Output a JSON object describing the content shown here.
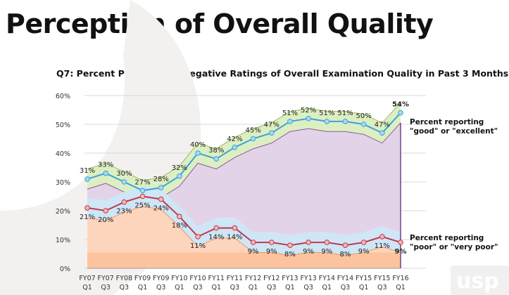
{
  "slide": {
    "title": "Perception of Overall Quality",
    "logo_text": "usp"
  },
  "chart_data": {
    "type": "line",
    "title": "Q7: Percent Positive and Negative Ratings of Overall Examination Quality in Past 3 Months",
    "categories": [
      [
        "FY07",
        "Q1"
      ],
      [
        "FY07",
        "Q3"
      ],
      [
        "FY08",
        "Q3"
      ],
      [
        "FY09",
        "Q1"
      ],
      [
        "FY09",
        "Q3"
      ],
      [
        "FY10",
        "Q1"
      ],
      [
        "FY10",
        "Q3"
      ],
      [
        "FY11",
        "Q1"
      ],
      [
        "FY11",
        "Q3"
      ],
      [
        "FY12",
        "Q1"
      ],
      [
        "FY12",
        "Q3"
      ],
      [
        "FY13",
        "Q1"
      ],
      [
        "FY13",
        "Q3"
      ],
      [
        "FY14",
        "Q1"
      ],
      [
        "FY14",
        "Q3"
      ],
      [
        "FY15",
        "Q1"
      ],
      [
        "FY15",
        "Q3"
      ],
      [
        "FY16",
        "Q1"
      ]
    ],
    "ylim": [
      0,
      60
    ],
    "yticks": [
      "0%",
      "10%",
      "20%",
      "30%",
      "40%",
      "50%",
      "60%"
    ],
    "grid": true,
    "series": [
      {
        "name": "Percent reporting \"good\" or \"excellent\"",
        "label_line1": "Percent reporting",
        "label_line2": "\"good\" or \"excellent\"",
        "color": "#3ba3d8",
        "band_color": "#dcefc2",
        "values": [
          31,
          33,
          30,
          27,
          28,
          32,
          40,
          38,
          42,
          45,
          47,
          51,
          52,
          51,
          51,
          50,
          47,
          54
        ]
      },
      {
        "name": "Percent reporting \"poor\" or \"very poor\"",
        "label_line1": "Percent reporting",
        "label_line2": "\"poor\" or \"very poor\"",
        "color": "#c0394b",
        "band_color": "#cfe6f7",
        "values": [
          21,
          20,
          23,
          25,
          24,
          18,
          11,
          14,
          14,
          9,
          9,
          8,
          9,
          9,
          8,
          9,
          11,
          9
        ]
      }
    ]
  }
}
